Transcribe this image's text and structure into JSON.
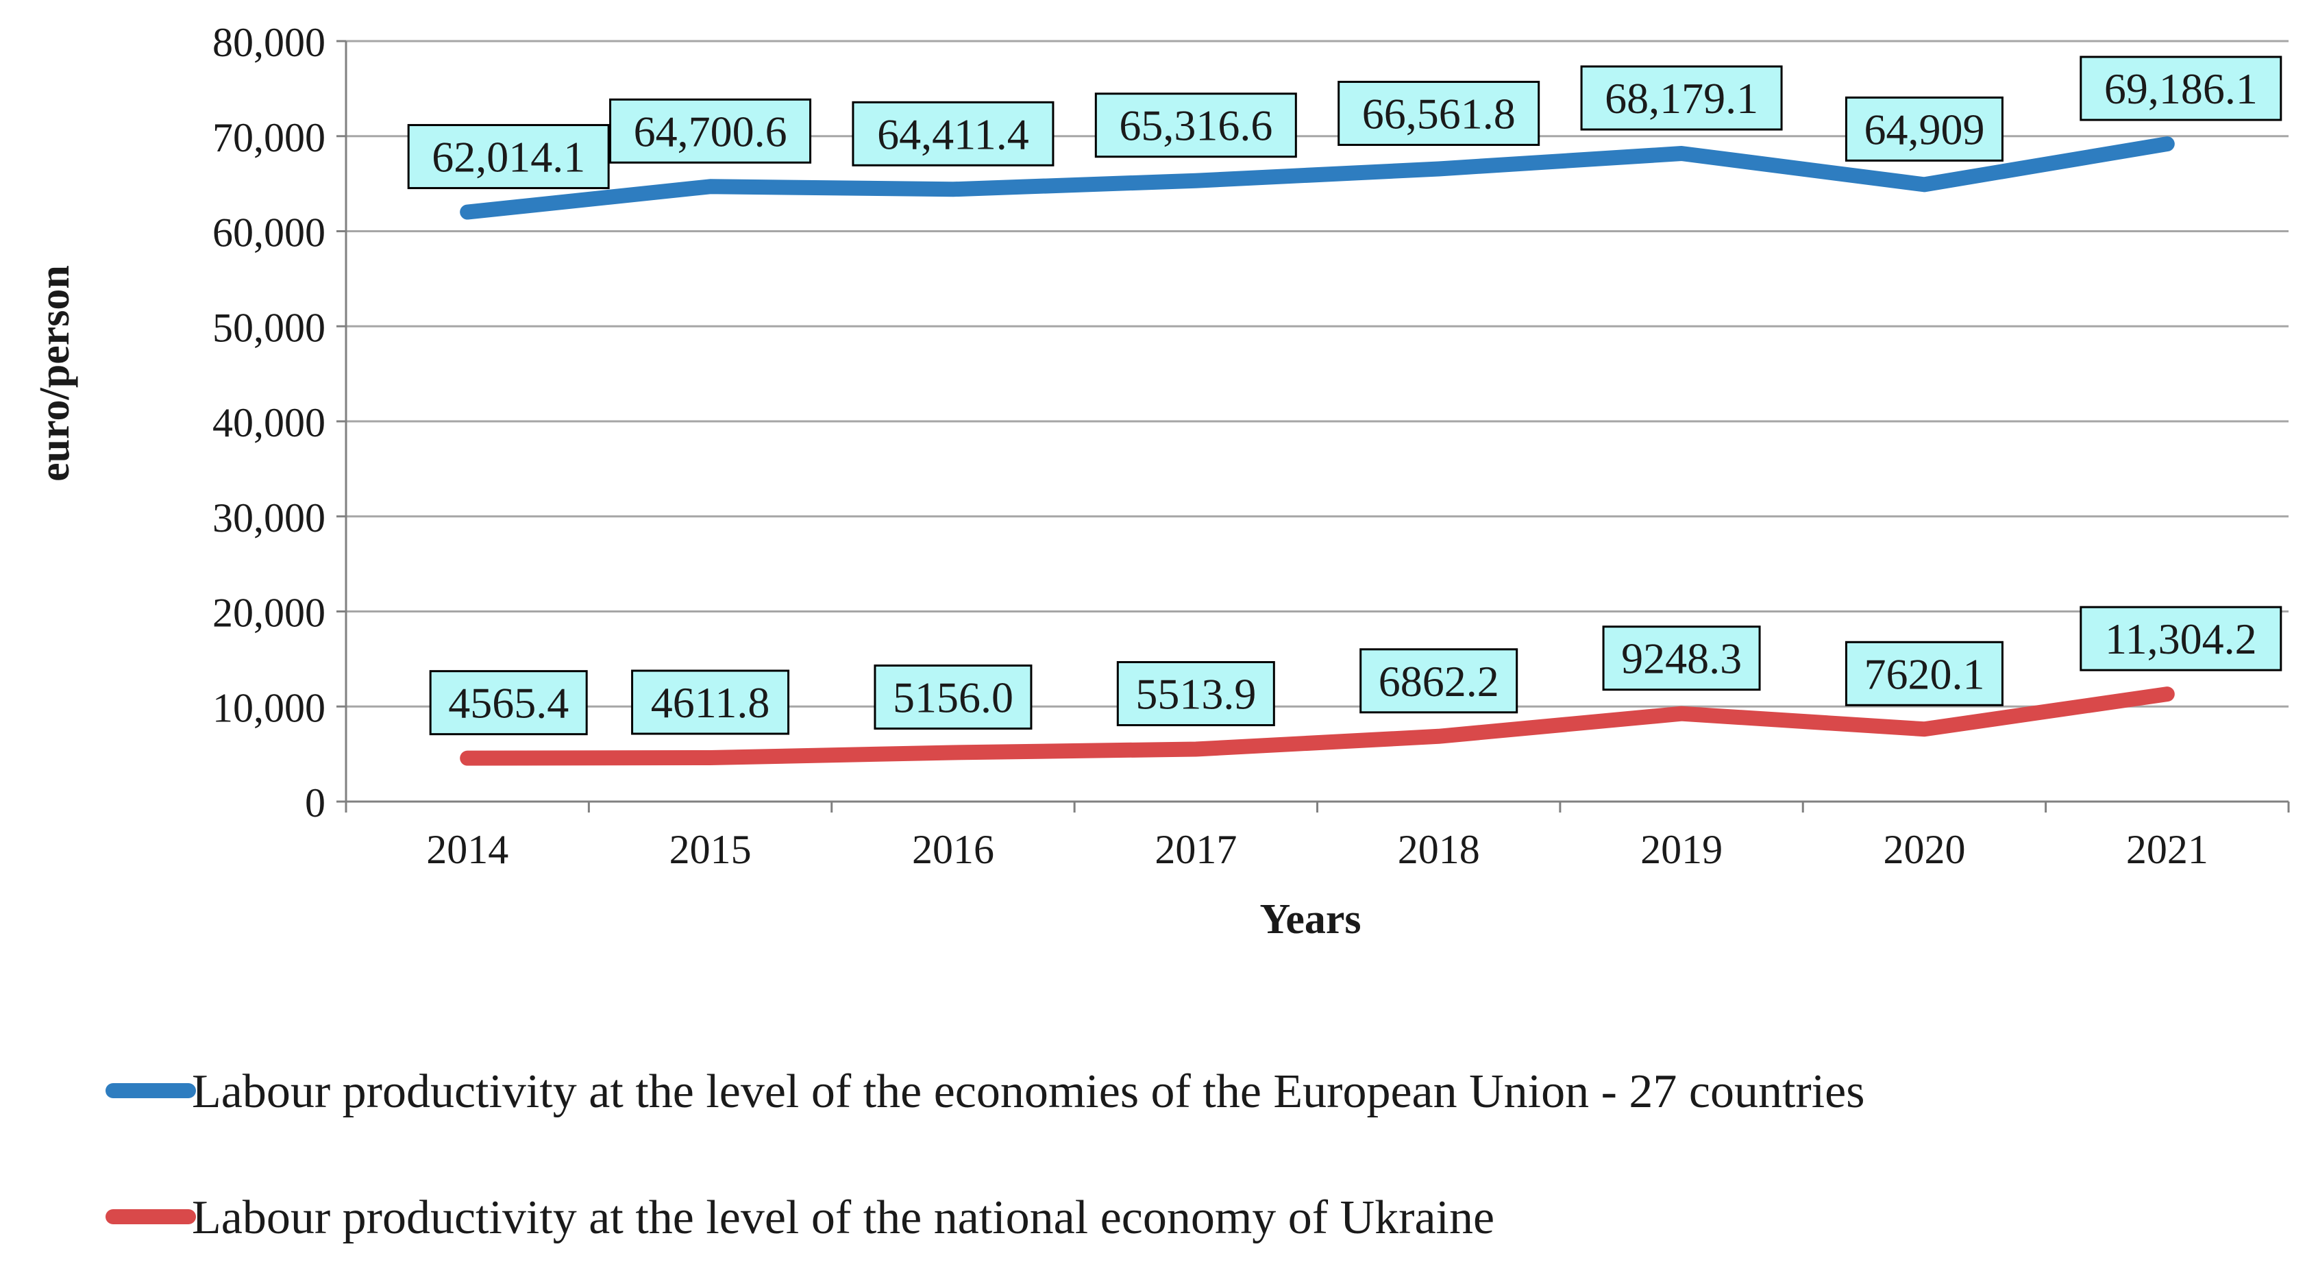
{
  "chart_data": {
    "type": "line",
    "title": "",
    "xlabel": "Years",
    "ylabel": "euro/person",
    "ylim": [
      0,
      80000
    ],
    "ytick_step": 10000,
    "ytick_labels": [
      "0",
      "10,000",
      "20,000",
      "30,000",
      "40,000",
      "50,000",
      "60,000",
      "70,000",
      "80,000"
    ],
    "categories": [
      "2014",
      "2015",
      "2016",
      "2017",
      "2018",
      "2019",
      "2020",
      "2021"
    ],
    "grid": true,
    "legend_position": "bottom",
    "series": [
      {
        "name": "Labour productivity at the level of the economies of the European Union - 27 countries",
        "color": "#2e7dc0",
        "values": [
          62014.1,
          64700.6,
          64411.4,
          65316.6,
          66561.8,
          68179.1,
          64909,
          69186.1
        ],
        "labels": [
          "62,014.1",
          "64,700.6",
          "64,411.4",
          "65,316.6",
          "66,561.8",
          "68,179.1",
          "64,909",
          "69,186.1"
        ]
      },
      {
        "name": "Labour productivity at the level of the national economy of Ukraine",
        "color": "#d9494a",
        "values": [
          4565.4,
          4611.8,
          5156.0,
          5513.9,
          6862.2,
          9248.3,
          7620.1,
          11304.2
        ],
        "labels": [
          "4565.4",
          "4611.8",
          "5156.0",
          "5513.9",
          "6862.2",
          "9248.3",
          "7620.1",
          "11,304.2"
        ]
      }
    ],
    "data_label_fill": "#b7f7f7",
    "gridline_color": "#a6a6a6",
    "axis_color": "#808080",
    "text_color": "#1a1a1a"
  }
}
